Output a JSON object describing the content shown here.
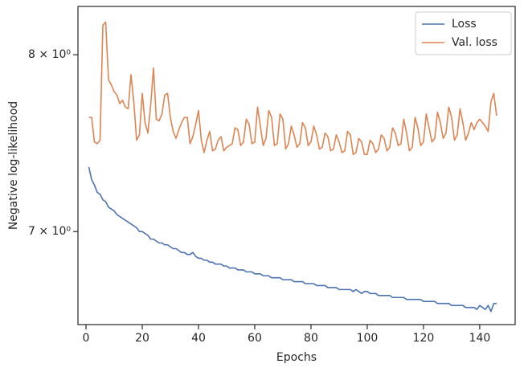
{
  "chart_data": {
    "type": "line",
    "xlabel": "Epochs",
    "ylabel": "Negative log-likelihood",
    "yscale": "log",
    "legend": "upper right",
    "xlim": [
      -2.86,
      152.6
    ],
    "ylim": [
      6.525,
      8.297
    ],
    "xticks": [
      0,
      20,
      40,
      60,
      80,
      100,
      120,
      140
    ],
    "yticks": [
      {
        "value": 7,
        "label": "7 × 10⁰"
      },
      {
        "value": 8,
        "label": "8 × 10⁰"
      }
    ],
    "x": [
      1,
      2,
      3,
      4,
      5,
      6,
      7,
      8,
      9,
      10,
      11,
      12,
      13,
      14,
      15,
      16,
      17,
      18,
      19,
      20,
      21,
      22,
      23,
      24,
      25,
      26,
      27,
      28,
      29,
      30,
      31,
      32,
      33,
      34,
      35,
      36,
      37,
      38,
      39,
      40,
      41,
      42,
      43,
      44,
      45,
      46,
      47,
      48,
      49,
      50,
      51,
      52,
      53,
      54,
      55,
      56,
      57,
      58,
      59,
      60,
      61,
      62,
      63,
      64,
      65,
      66,
      67,
      68,
      69,
      70,
      71,
      72,
      73,
      74,
      75,
      76,
      77,
      78,
      79,
      80,
      81,
      82,
      83,
      84,
      85,
      86,
      87,
      88,
      89,
      90,
      91,
      92,
      93,
      94,
      95,
      96,
      97,
      98,
      99,
      100,
      101,
      102,
      103,
      104,
      105,
      106,
      107,
      108,
      109,
      110,
      111,
      112,
      113,
      114,
      115,
      116,
      117,
      118,
      119,
      120,
      121,
      122,
      123,
      124,
      125,
      126,
      127,
      128,
      129,
      130,
      131,
      132,
      133,
      134,
      135,
      136,
      137,
      138,
      139,
      140,
      141,
      142,
      143,
      144,
      145,
      146
    ],
    "series": [
      {
        "name": "Loss",
        "color": "#4c72b0",
        "values": [
          7.35,
          7.28,
          7.25,
          7.21,
          7.2,
          7.17,
          7.16,
          7.13,
          7.12,
          7.11,
          7.09,
          7.08,
          7.07,
          7.06,
          7.05,
          7.04,
          7.03,
          7.02,
          7.0,
          7.0,
          6.99,
          6.98,
          6.96,
          6.96,
          6.95,
          6.94,
          6.94,
          6.93,
          6.93,
          6.92,
          6.91,
          6.91,
          6.9,
          6.89,
          6.89,
          6.88,
          6.88,
          6.89,
          6.87,
          6.86,
          6.86,
          6.85,
          6.85,
          6.84,
          6.84,
          6.83,
          6.83,
          6.83,
          6.82,
          6.82,
          6.81,
          6.81,
          6.81,
          6.8,
          6.8,
          6.8,
          6.79,
          6.79,
          6.79,
          6.78,
          6.78,
          6.78,
          6.77,
          6.77,
          6.77,
          6.76,
          6.76,
          6.76,
          6.76,
          6.75,
          6.75,
          6.75,
          6.75,
          6.74,
          6.74,
          6.74,
          6.74,
          6.73,
          6.73,
          6.73,
          6.73,
          6.72,
          6.72,
          6.72,
          6.72,
          6.71,
          6.71,
          6.71,
          6.71,
          6.7,
          6.7,
          6.7,
          6.7,
          6.7,
          6.69,
          6.7,
          6.69,
          6.68,
          6.69,
          6.69,
          6.68,
          6.68,
          6.68,
          6.67,
          6.67,
          6.67,
          6.67,
          6.67,
          6.66,
          6.66,
          6.66,
          6.66,
          6.66,
          6.65,
          6.65,
          6.65,
          6.65,
          6.65,
          6.65,
          6.64,
          6.64,
          6.64,
          6.64,
          6.64,
          6.63,
          6.63,
          6.63,
          6.63,
          6.63,
          6.62,
          6.62,
          6.62,
          6.62,
          6.62,
          6.61,
          6.61,
          6.61,
          6.61,
          6.6,
          6.62,
          6.61,
          6.6,
          6.62,
          6.59,
          6.63,
          6.63
        ]
      },
      {
        "name": "Val. loss",
        "color": "#dd8452",
        "values": [
          7.63,
          7.63,
          7.49,
          7.48,
          7.5,
          8.18,
          8.2,
          7.85,
          7.82,
          7.78,
          7.76,
          7.71,
          7.73,
          7.69,
          7.68,
          7.88,
          7.72,
          7.5,
          7.53,
          7.77,
          7.6,
          7.54,
          7.7,
          7.92,
          7.62,
          7.61,
          7.65,
          7.76,
          7.77,
          7.63,
          7.55,
          7.51,
          7.56,
          7.6,
          7.63,
          7.63,
          7.48,
          7.52,
          7.59,
          7.67,
          7.5,
          7.43,
          7.5,
          7.55,
          7.44,
          7.45,
          7.5,
          7.52,
          7.44,
          7.46,
          7.47,
          7.48,
          7.57,
          7.56,
          7.47,
          7.49,
          7.62,
          7.59,
          7.48,
          7.49,
          7.69,
          7.58,
          7.47,
          7.51,
          7.67,
          7.63,
          7.47,
          7.48,
          7.65,
          7.62,
          7.45,
          7.48,
          7.58,
          7.53,
          7.46,
          7.48,
          7.6,
          7.57,
          7.47,
          7.49,
          7.58,
          7.53,
          7.45,
          7.46,
          7.54,
          7.52,
          7.44,
          7.45,
          7.53,
          7.49,
          7.43,
          7.44,
          7.55,
          7.53,
          7.42,
          7.43,
          7.51,
          7.49,
          7.42,
          7.42,
          7.5,
          7.48,
          7.43,
          7.45,
          7.53,
          7.51,
          7.44,
          7.46,
          7.57,
          7.54,
          7.47,
          7.48,
          7.62,
          7.54,
          7.44,
          7.46,
          7.63,
          7.57,
          7.47,
          7.49,
          7.65,
          7.57,
          7.49,
          7.51,
          7.66,
          7.6,
          7.51,
          7.54,
          7.69,
          7.63,
          7.5,
          7.53,
          7.68,
          7.6,
          7.5,
          7.54,
          7.6,
          7.56,
          7.6,
          7.62,
          7.6,
          7.58,
          7.55,
          7.72,
          7.77,
          7.64
        ]
      }
    ]
  }
}
